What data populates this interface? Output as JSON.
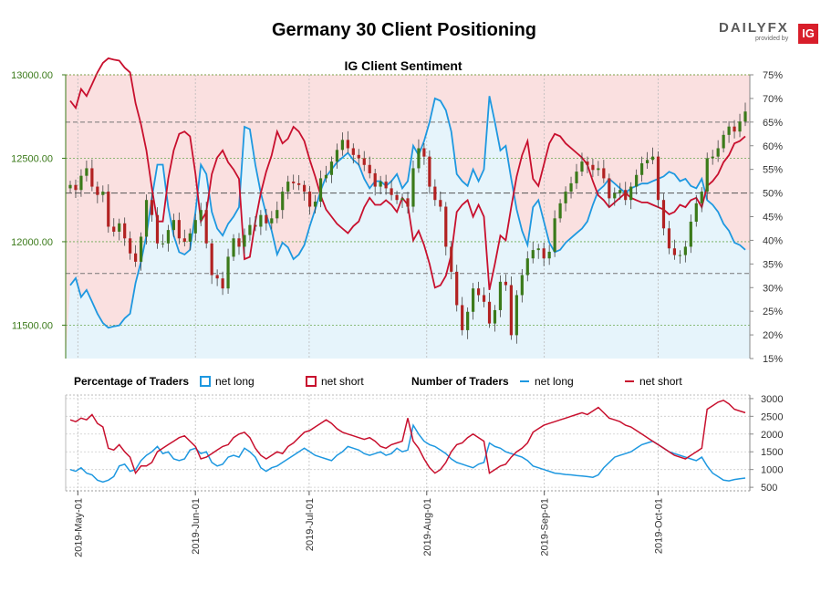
{
  "header": {
    "title": "Germany 30 Client Positioning",
    "logo_text": "DAILYFX",
    "logo_sub": "provided by",
    "logo_badge": "IG"
  },
  "chart_data": {
    "type": "line",
    "title": "Germany 30 Client Positioning",
    "subtitle": "IG Client Sentiment",
    "price_axis": {
      "ticks": [
        "13000.00",
        "12500.00",
        "12000.00",
        "11500.00"
      ],
      "range": [
        11300,
        13000
      ]
    },
    "sentiment_axis": {
      "ticks": [
        "75%",
        "70%",
        "65%",
        "60%",
        "55%",
        "50%",
        "45%",
        "40%",
        "35%",
        "30%",
        "25%",
        "20%",
        "15%"
      ],
      "range": [
        15,
        75
      ]
    },
    "traders_axis": {
      "ticks": [
        "3000",
        "2500",
        "2000",
        "1500",
        "1000",
        "500"
      ],
      "range": [
        400,
        3100
      ]
    },
    "x_axis": {
      "ticks": [
        "2019-May-01",
        "2019-Jun-01",
        "2019-Jul-01",
        "2019-Aug-01",
        "2019-Sep-01",
        "2019-Oct-01"
      ],
      "start": "2019-04-29",
      "end": "2019-10-24"
    },
    "legend": {
      "percentage_title": "Percentage of Traders",
      "number_title": "Number of Traders",
      "net_long": "net long",
      "net_short": "net short"
    },
    "colors": {
      "net_long": "#1e98e0",
      "net_short": "#c8102e",
      "candle_up": "#3b7a1a",
      "candle_down": "#b22222",
      "long_fill": "#e6f4fb",
      "short_fill": "#fae0e0"
    },
    "price_close": [
      12340,
      12310,
      12395,
      12440,
      12330,
      12280,
      12300,
      12090,
      12060,
      12110,
      12020,
      11930,
      11880,
      12030,
      12250,
      12160,
      11990,
      11990,
      12070,
      12130,
      12020,
      12000,
      12050,
      12130,
      12190,
      11990,
      11800,
      11780,
      11720,
      11910,
      12020,
      11970,
      12040,
      12100,
      12090,
      12160,
      12110,
      12140,
      12190,
      12300,
      12360,
      12350,
      12340,
      12300,
      12210,
      12240,
      12380,
      12400,
      12480,
      12550,
      12610,
      12560,
      12520,
      12500,
      12460,
      12410,
      12330,
      12360,
      12320,
      12280,
      12250,
      12260,
      12210,
      12440,
      12560,
      12510,
      12330,
      12250,
      12210,
      11970,
      11820,
      11620,
      11470,
      11580,
      11720,
      11680,
      11640,
      11510,
      11590,
      11760,
      11740,
      11440,
      11680,
      11800,
      11900,
      11950,
      11960,
      11900,
      11940,
      12140,
      12230,
      12300,
      12350,
      12420,
      12480,
      12460,
      12430,
      12440,
      12380,
      12260,
      12290,
      12310,
      12250,
      12330,
      12400,
      12470,
      12490,
      12510,
      12250,
      12080,
      11960,
      11920,
      11920,
      11970,
      12120,
      12230,
      12300,
      12500,
      12510,
      12560,
      12640,
      12690,
      12660,
      12720,
      12780
    ],
    "sentiment_net_long": [
      30.5,
      32.0,
      28.0,
      29.5,
      27.0,
      24.5,
      22.5,
      21.5,
      21.8,
      22.0,
      23.5,
      24.5,
      31.0,
      35.5,
      41.0,
      49.0,
      56.0,
      56.0,
      47.0,
      41.0,
      37.5,
      37.0,
      38.0,
      46.0,
      56.0,
      54.0,
      46.0,
      42.5,
      41.0,
      43.5,
      45.0,
      47.0,
      64.0,
      63.5,
      56.0,
      50.0,
      45.5,
      42.0,
      37.0,
      39.5,
      38.5,
      36.0,
      37.0,
      39.0,
      43.0,
      46.5,
      50.5,
      53.5,
      55.0,
      56.5,
      57.5,
      58.5,
      57.0,
      56.0,
      53.0,
      51.0,
      52.5,
      52.5,
      51.5,
      52.5,
      54.0,
      51.0,
      52.5,
      60.0,
      58.0,
      61.0,
      65.0,
      70.0,
      69.5,
      67.5,
      63.0,
      54.0,
      52.5,
      51.5,
      55.0,
      52.5,
      55.0,
      70.5,
      65.0,
      59.0,
      60.0,
      53.0,
      46.5,
      42.0,
      39.0,
      47.0,
      48.5,
      44.0,
      39.5,
      37.5,
      38.0,
      39.5,
      40.5,
      41.5,
      42.5,
      44.0,
      47.5,
      50.5,
      51.5,
      53.0,
      52.0,
      51.0,
      50.0,
      51.0,
      51.5,
      52.0,
      52.0,
      52.5,
      53.0,
      53.5,
      54.5,
      54.0,
      52.5,
      53.0,
      51.5,
      51.0,
      53.0,
      48.5,
      47.5,
      46.0,
      43.5,
      42.0,
      39.5,
      39.0,
      38.0
    ],
    "traders_net_long": [
      1000,
      950,
      1050,
      900,
      850,
      700,
      650,
      700,
      800,
      1100,
      1150,
      950,
      1000,
      1250,
      1400,
      1500,
      1650,
      1450,
      1500,
      1300,
      1250,
      1300,
      1550,
      1600,
      1450,
      1500,
      1200,
      1100,
      1150,
      1350,
      1400,
      1350,
      1600,
      1500,
      1350,
      1050,
      950,
      1050,
      1100,
      1200,
      1300,
      1400,
      1500,
      1600,
      1500,
      1400,
      1350,
      1300,
      1250,
      1400,
      1500,
      1650,
      1600,
      1550,
      1450,
      1400,
      1450,
      1500,
      1400,
      1450,
      1600,
      1500,
      1550,
      2250,
      2000,
      1800,
      1700,
      1650,
      1550,
      1450,
      1300,
      1200,
      1150,
      1100,
      1050,
      1150,
      1200,
      1750,
      1650,
      1600,
      1500,
      1450,
      1400,
      1350,
      1250,
      1100,
      1050,
      1000,
      950,
      900,
      880,
      860,
      850,
      830,
      820,
      800,
      780,
      850,
      1050,
      1200,
      1350,
      1400,
      1450,
      1500,
      1600,
      1700,
      1750,
      1800,
      1700,
      1600,
      1500,
      1450,
      1400,
      1350,
      1300,
      1250,
      1350,
      1100,
      900,
      800,
      700,
      680,
      720,
      740,
      760
    ],
    "traders_net_short": [
      2400,
      2350,
      2450,
      2400,
      2550,
      2300,
      2200,
      1600,
      1550,
      1700,
      1500,
      1350,
      900,
      1100,
      1100,
      1200,
      1500,
      1600,
      1700,
      1800,
      1900,
      1950,
      1800,
      1650,
      1300,
      1350,
      1450,
      1550,
      1650,
      1700,
      1900,
      2000,
      2050,
      1900,
      1600,
      1400,
      1300,
      1400,
      1500,
      1450,
      1650,
      1750,
      1900,
      2050,
      2100,
      2200,
      2300,
      2400,
      2300,
      2150,
      2050,
      2000,
      1950,
      1900,
      1850,
      1900,
      1800,
      1650,
      1600,
      1700,
      1750,
      1800,
      2450,
      1800,
      1600,
      1300,
      1050,
      900,
      1000,
      1200,
      1500,
      1700,
      1750,
      1900,
      2000,
      1900,
      1800,
      900,
      1000,
      1100,
      1150,
      1350,
      1500,
      1600,
      1750,
      2050,
      2150,
      2250,
      2300,
      2350,
      2400,
      2450,
      2500,
      2550,
      2600,
      2550,
      2650,
      2750,
      2600,
      2450,
      2400,
      2350,
      2250,
      2200,
      2100,
      2000,
      1900,
      1800,
      1700,
      1600,
      1500,
      1400,
      1350,
      1300,
      1400,
      1500,
      1600,
      2700,
      2800,
      2900,
      2950,
      2850,
      2700,
      2650,
      2600
    ]
  }
}
